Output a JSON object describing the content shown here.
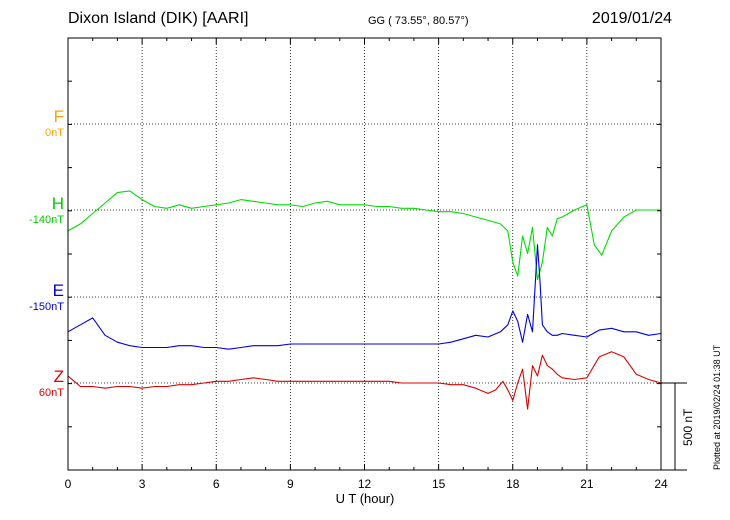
{
  "header": {
    "station": "Dixon Island (DIK)  [AARI]",
    "coords": "GG ( 73.55°,  80.57°)",
    "date": "2019/01/24"
  },
  "side_note": "Plotted at 2019/02/24 01:38 UT",
  "scale_label": "500 nT",
  "colors": {
    "F": "#ffa500",
    "H": "#00dd00",
    "E": "#0000dd",
    "Z": "#dd0000"
  },
  "channels": [
    {
      "name": "F",
      "offset": "0nT",
      "color": "#ffa500"
    },
    {
      "name": "H",
      "offset": "-140nT",
      "color": "#00cc00"
    },
    {
      "name": "E",
      "offset": "-150nT",
      "color": "#0000cc"
    },
    {
      "name": "Z",
      "offset": "60nT",
      "color": "#dd0000"
    }
  ],
  "chart_data": {
    "type": "line",
    "xlabel": "U T (hour)",
    "xlim": [
      0,
      24
    ],
    "x_ticks": [
      "0",
      "3",
      "6",
      "9",
      "12",
      "15",
      "18",
      "21",
      "24"
    ],
    "grid": true,
    "series": [
      {
        "name": "H",
        "x": [
          0,
          0.5,
          1,
          1.5,
          2,
          2.5,
          3,
          3.5,
          4,
          4.5,
          5,
          5.5,
          6,
          6.5,
          7,
          7.5,
          8,
          8.5,
          9,
          9.5,
          10,
          10.5,
          11,
          11.5,
          12,
          12.5,
          13,
          13.5,
          14,
          14.5,
          15,
          15.5,
          16,
          16.5,
          17,
          17.5,
          17.8,
          18,
          18.2,
          18.4,
          18.6,
          18.8,
          19,
          19.2,
          19.4,
          19.6,
          19.8,
          20,
          20.5,
          21,
          21.3,
          21.6,
          22,
          22.5,
          23,
          23.5,
          24
        ],
        "y": [
          -120,
          -80,
          -20,
          40,
          100,
          110,
          60,
          20,
          10,
          30,
          10,
          20,
          30,
          40,
          60,
          50,
          40,
          30,
          30,
          20,
          40,
          50,
          30,
          30,
          30,
          20,
          20,
          10,
          10,
          0,
          -10,
          -10,
          -20,
          -40,
          -60,
          -80,
          -120,
          -300,
          -380,
          -150,
          -250,
          -100,
          -400,
          -300,
          -100,
          -150,
          -50,
          -40,
          0,
          30,
          -200,
          -260,
          -120,
          -40,
          0,
          0,
          0
        ]
      },
      {
        "name": "E",
        "x": [
          0,
          0.5,
          1,
          1.5,
          2,
          2.5,
          3,
          3.5,
          4,
          4.5,
          5,
          5.5,
          6,
          6.5,
          7,
          7.5,
          8,
          8.5,
          9,
          9.5,
          10,
          10.5,
          11,
          11.5,
          12,
          12.5,
          13,
          13.5,
          14,
          14.5,
          15,
          15.5,
          16,
          16.5,
          17,
          17.5,
          17.8,
          18,
          18.2,
          18.4,
          18.6,
          18.8,
          19,
          19.1,
          19.2,
          19.4,
          19.6,
          19.8,
          20,
          20.5,
          21,
          21.5,
          22,
          22.5,
          23,
          23.5,
          24
        ],
        "y": [
          -200,
          -160,
          -120,
          -220,
          -260,
          -280,
          -290,
          -290,
          -290,
          -280,
          -280,
          -290,
          -290,
          -300,
          -290,
          -280,
          -280,
          -280,
          -270,
          -270,
          -270,
          -270,
          -270,
          -270,
          -270,
          -270,
          -270,
          -270,
          -270,
          -270,
          -270,
          -260,
          -240,
          -220,
          -230,
          -200,
          -160,
          -80,
          -140,
          -260,
          -100,
          -200,
          300,
          100,
          -160,
          -200,
          -220,
          -220,
          -210,
          -220,
          -230,
          -190,
          -180,
          -200,
          -200,
          -220,
          -210
        ]
      },
      {
        "name": "Z",
        "x": [
          0,
          0.5,
          1,
          1.5,
          2,
          2.5,
          3,
          3.5,
          4,
          4.5,
          5,
          5.5,
          6,
          6.5,
          7,
          7.5,
          8,
          8.5,
          9,
          9.5,
          10,
          10.5,
          11,
          11.5,
          12,
          12.5,
          13,
          13.5,
          14,
          14.5,
          15,
          15.5,
          16,
          16.5,
          17,
          17.3,
          17.6,
          17.8,
          18,
          18.2,
          18.4,
          18.6,
          18.8,
          19,
          19.2,
          19.4,
          19.6,
          19.8,
          20,
          20.5,
          21,
          21.5,
          22,
          22.5,
          23,
          23.5,
          24
        ],
        "y": [
          40,
          -20,
          -20,
          -30,
          -20,
          -20,
          -30,
          -20,
          -20,
          -10,
          -10,
          0,
          10,
          10,
          20,
          30,
          20,
          10,
          10,
          10,
          10,
          10,
          10,
          10,
          10,
          10,
          10,
          0,
          0,
          0,
          0,
          -10,
          -10,
          -30,
          -60,
          -40,
          10,
          -40,
          -100,
          0,
          80,
          -150,
          100,
          40,
          160,
          100,
          80,
          50,
          30,
          20,
          30,
          150,
          180,
          150,
          50,
          20,
          0
        ]
      }
    ]
  }
}
